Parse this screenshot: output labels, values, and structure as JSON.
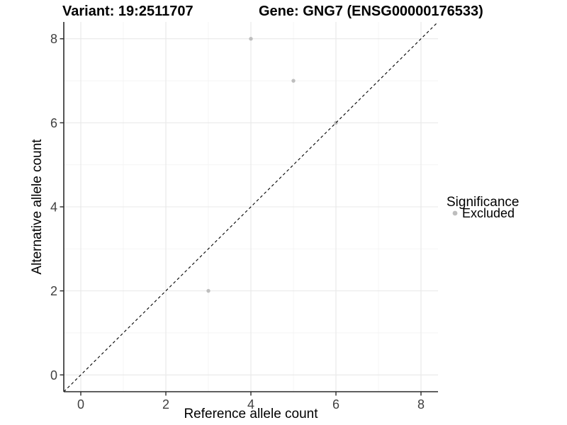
{
  "chart_data": {
    "type": "scatter",
    "title_left": "Variant: 19:2511707",
    "title_right": "Gene: GNG7 (ENSG00000176533)",
    "xlabel": "Reference allele count",
    "ylabel": "Alternative allele count",
    "xlim": [
      -0.4,
      8.4
    ],
    "ylim": [
      -0.4,
      8.4
    ],
    "x_major_ticks": [
      0,
      2,
      4,
      6,
      8
    ],
    "y_major_ticks": [
      0,
      2,
      4,
      6,
      8
    ],
    "x_minor_ticks": [
      1,
      3,
      5,
      7
    ],
    "y_minor_ticks": [
      1,
      3,
      5,
      7
    ],
    "grid": true,
    "series": [
      {
        "name": "Excluded",
        "color": "#bebebe",
        "points": [
          {
            "x": 4,
            "y": 8
          },
          {
            "x": 5,
            "y": 7
          },
          {
            "x": 6,
            "y": 6
          },
          {
            "x": 3,
            "y": 2
          }
        ]
      }
    ],
    "reference_line": {
      "type": "identity",
      "slope": 1,
      "intercept": 0,
      "style": "dashed",
      "color": "#000000"
    },
    "legend": {
      "title": "Significance",
      "position": "right",
      "items": [
        {
          "label": "Excluded",
          "color": "#bebebe"
        }
      ]
    },
    "colors": {
      "point": "#bebebe",
      "grid_major": "#e8e8e8",
      "grid_minor": "#f3f3f3",
      "axis_line": "#2b2b2b",
      "tick_mark": "#2b2b2b",
      "tick_label": "#404040",
      "background": "#ffffff"
    }
  }
}
